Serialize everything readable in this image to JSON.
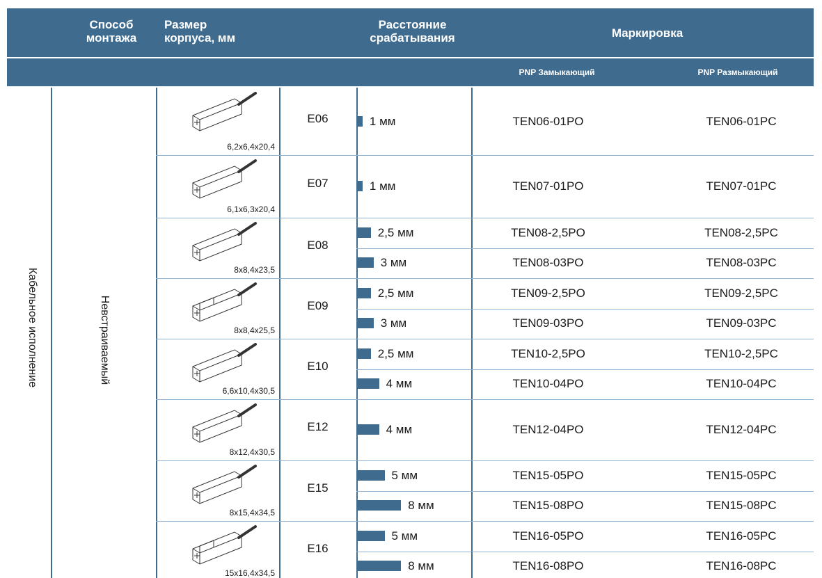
{
  "header": {
    "mount": [
      "Способ",
      "монтажа"
    ],
    "size": [
      "Размер",
      "корпуса, мм"
    ],
    "distance": [
      "Расстояние",
      "срабатывания"
    ],
    "marking": "Маркировка"
  },
  "subheader": {
    "no": "PNP Замыкающий",
    "nc": "PNP Размыкающий"
  },
  "side": {
    "mount_type": "Кабельное исполнение",
    "install": "Невстраиваемый"
  },
  "rows": [
    {
      "series": "E06",
      "dim": "6,2x6,4x20,4",
      "entries": [
        {
          "distance": "1 мм",
          "distance_mm": 1,
          "no": "TEN06-01PO",
          "nc": "TEN06-01PC"
        }
      ]
    },
    {
      "series": "E07",
      "dim": "6,1x6,3x20,4",
      "entries": [
        {
          "distance": "1 мм",
          "distance_mm": 1,
          "no": "TEN07-01PO",
          "nc": "TEN07-01PC"
        }
      ]
    },
    {
      "series": "E08",
      "dim": "8x8,4x23,5",
      "entries": [
        {
          "distance": "2,5 мм",
          "distance_mm": 2.5,
          "no": "TEN08-2,5PO",
          "nc": "TEN08-2,5PC"
        },
        {
          "distance": "3 мм",
          "distance_mm": 3,
          "no": "TEN08-03PO",
          "nc": "TEN08-03PC"
        }
      ]
    },
    {
      "series": "E09",
      "dim": "8x8,4x25,5",
      "entries": [
        {
          "distance": "2,5 мм",
          "distance_mm": 2.5,
          "no": "TEN09-2,5PO",
          "nc": "TEN09-2,5PC"
        },
        {
          "distance": "3 мм",
          "distance_mm": 3,
          "no": "TEN09-03PO",
          "nc": "TEN09-03PC"
        }
      ]
    },
    {
      "series": "E10",
      "dim": "6,6x10,4x30,5",
      "entries": [
        {
          "distance": "2,5 мм",
          "distance_mm": 2.5,
          "no": "TEN10-2,5PO",
          "nc": "TEN10-2,5PC"
        },
        {
          "distance": "4 мм",
          "distance_mm": 4,
          "no": "TEN10-04PO",
          "nc": "TEN10-04PC"
        }
      ]
    },
    {
      "series": "E12",
      "dim": "8x12,4x30,5",
      "entries": [
        {
          "distance": "4 мм",
          "distance_mm": 4,
          "no": "TEN12-04PO",
          "nc": "TEN12-04PC"
        }
      ]
    },
    {
      "series": "E15",
      "dim": "8x15,4x34,5",
      "entries": [
        {
          "distance": "5 мм",
          "distance_mm": 5,
          "no": "TEN15-05PO",
          "nc": "TEN15-05PC"
        },
        {
          "distance": "8 мм",
          "distance_mm": 8,
          "no": "TEN15-08PO",
          "nc": "TEN15-08PC"
        }
      ]
    },
    {
      "series": "E16",
      "dim": "15x16,4x34,5",
      "entries": [
        {
          "distance": "5 мм",
          "distance_mm": 5,
          "no": "TEN16-05PO",
          "nc": "TEN16-05PC"
        },
        {
          "distance": "8 мм",
          "distance_mm": 8,
          "no": "TEN16-08PO",
          "nc": "TEN16-08PC"
        }
      ]
    }
  ],
  "colors": {
    "header_bg": "#3f6b8f",
    "bar": "#3f6b8f",
    "grid": "#8fb3d0"
  }
}
